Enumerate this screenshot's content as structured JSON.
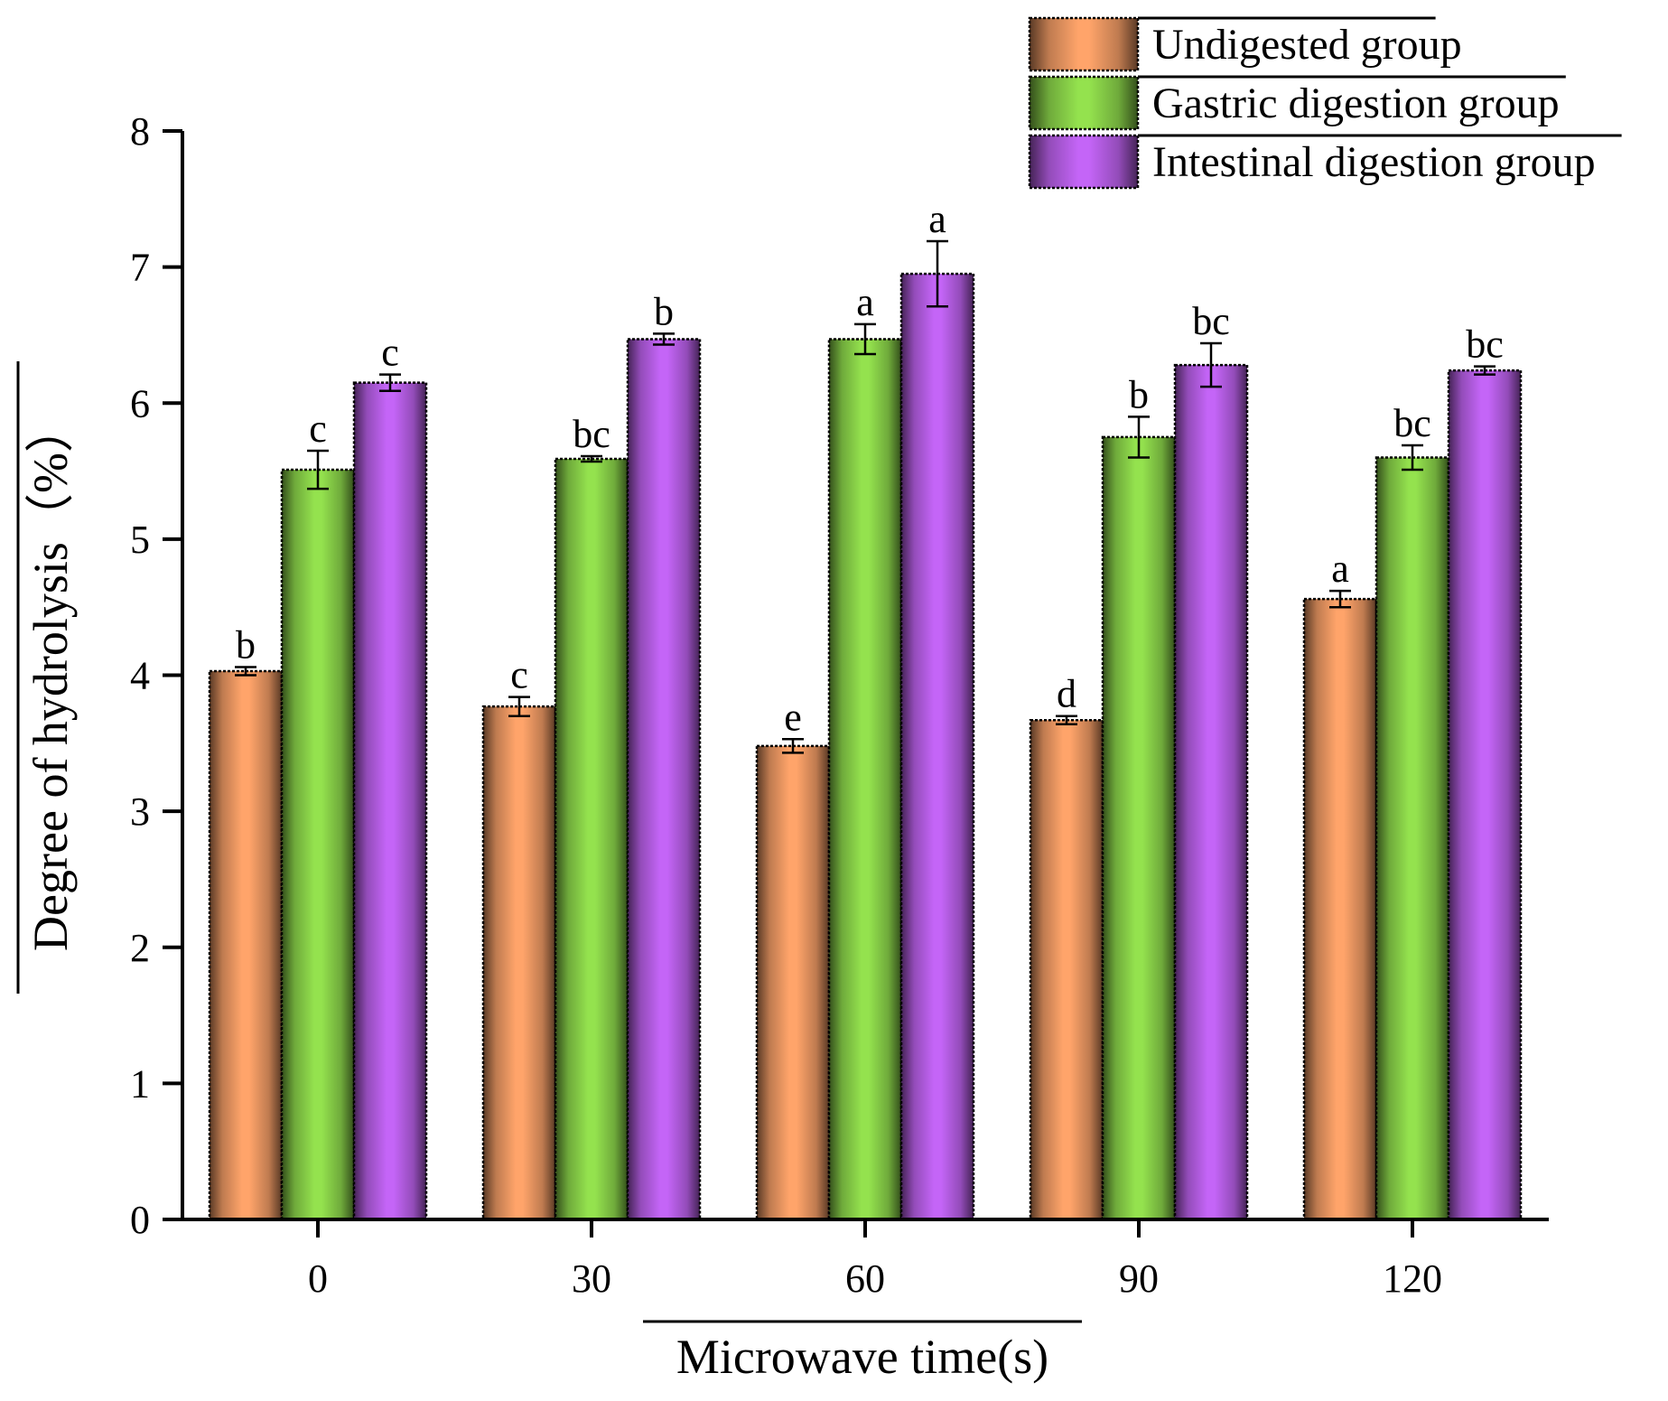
{
  "chart_data": {
    "type": "bar",
    "xlabel": "Microwave time(s)",
    "ylabel": "Degree of hydrolysis（%）",
    "categories": [
      "0",
      "30",
      "60",
      "90",
      "120"
    ],
    "ylim": [
      0,
      8
    ],
    "yticks": [
      "0",
      "1",
      "2",
      "3",
      "4",
      "5",
      "6",
      "7",
      "8"
    ],
    "legend_position": "top-right",
    "series": [
      {
        "name": "Undigested group",
        "color": "#FFA46A",
        "values": [
          4.03,
          3.77,
          3.48,
          3.67,
          4.56
        ],
        "errors": [
          0.03,
          0.07,
          0.05,
          0.03,
          0.06
        ],
        "labels": [
          "b",
          "c",
          "e",
          "d",
          "a"
        ]
      },
      {
        "name": "Gastric digestion group",
        "color": "#94E24E",
        "values": [
          5.51,
          5.59,
          6.47,
          5.75,
          5.6
        ],
        "errors": [
          0.14,
          0.02,
          0.11,
          0.15,
          0.09
        ],
        "labels": [
          "c",
          "bc",
          "a",
          "b",
          "bc"
        ]
      },
      {
        "name": "Intestinal digestion group",
        "color": "#C465F7",
        "values": [
          6.15,
          6.47,
          6.95,
          6.28,
          6.24
        ],
        "errors": [
          0.06,
          0.04,
          0.24,
          0.16,
          0.03
        ],
        "labels": [
          "c",
          "b",
          "a",
          "bc",
          "bc"
        ]
      }
    ]
  }
}
